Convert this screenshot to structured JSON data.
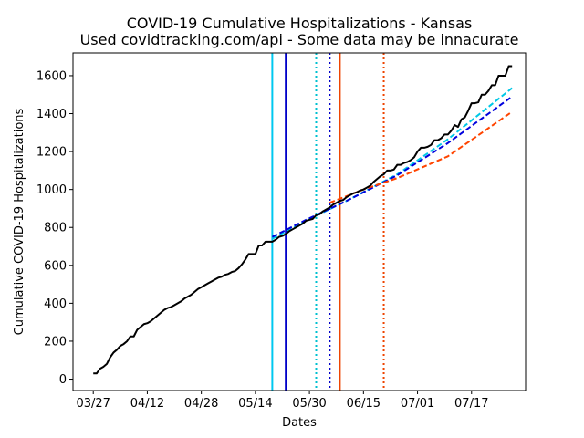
{
  "chart_data": {
    "type": "line",
    "title": "COVID-19 Cumulative Hospitalizations - Kansas",
    "subtitle": "Used covidtracking.com/api - Some data may be innacurate",
    "xlabel": "Dates",
    "ylabel": "Cumulative COVID-19 Hospitalizations",
    "x_ticks": [
      "03/27",
      "04/12",
      "04/28",
      "05/14",
      "05/30",
      "06/15",
      "07/01",
      "07/17"
    ],
    "y_ticks": [
      0,
      200,
      400,
      600,
      800,
      1000,
      1200,
      1400,
      1600
    ],
    "xlim_days_from_0327": [
      -6,
      128
    ],
    "ylim": [
      -60,
      1720
    ],
    "grid": false,
    "legend": "none",
    "series": [
      {
        "style": "solid",
        "color": "#000000",
        "x": [
          "03/27",
          "03/28",
          "03/29",
          "03/30",
          "03/31",
          "04/01",
          "04/02",
          "04/03",
          "04/04",
          "04/05",
          "04/06",
          "04/07",
          "04/08",
          "04/09",
          "04/10",
          "04/11",
          "04/12",
          "04/13",
          "04/14",
          "04/15",
          "04/16",
          "04/17",
          "04/18",
          "04/19",
          "04/20",
          "04/21",
          "04/22",
          "04/23",
          "04/24",
          "04/25",
          "04/26",
          "04/27",
          "04/28",
          "04/29",
          "04/30",
          "05/01",
          "05/02",
          "05/03",
          "05/04",
          "05/05",
          "05/06",
          "05/07",
          "05/08",
          "05/09",
          "05/10",
          "05/11",
          "05/12",
          "05/13",
          "05/14",
          "05/15",
          "05/16",
          "05/17",
          "05/18",
          "05/19",
          "05/20",
          "05/21",
          "05/22",
          "05/23",
          "05/24",
          "05/25",
          "05/26",
          "05/27",
          "05/28",
          "05/29",
          "05/30",
          "05/31",
          "06/01",
          "06/02",
          "06/03",
          "06/04",
          "06/05",
          "06/06",
          "06/07",
          "06/08",
          "06/09",
          "06/10",
          "06/11",
          "06/12",
          "06/13",
          "06/14",
          "06/15",
          "06/16",
          "06/17",
          "06/18",
          "06/19",
          "06/20",
          "06/21",
          "06/22",
          "06/23",
          "06/24",
          "06/25",
          "06/26",
          "06/27",
          "06/28",
          "06/29",
          "06/30",
          "07/01",
          "07/02",
          "07/03",
          "07/04",
          "07/05",
          "07/06",
          "07/07",
          "07/08",
          "07/09",
          "07/10",
          "07/11",
          "07/12",
          "07/13",
          "07/14",
          "07/15",
          "07/16",
          "07/17",
          "07/18",
          "07/19",
          "07/20",
          "07/21",
          "07/22",
          "07/23",
          "07/24",
          "07/25",
          "07/26",
          "07/27",
          "07/28",
          "07/29"
        ],
        "y": [
          30,
          30,
          55,
          65,
          80,
          115,
          140,
          155,
          175,
          185,
          200,
          225,
          225,
          260,
          275,
          290,
          295,
          305,
          320,
          335,
          350,
          365,
          375,
          380,
          390,
          400,
          410,
          425,
          435,
          445,
          460,
          475,
          485,
          495,
          505,
          515,
          525,
          535,
          540,
          550,
          555,
          565,
          570,
          585,
          605,
          630,
          660,
          660,
          660,
          705,
          705,
          725,
          725,
          725,
          735,
          750,
          755,
          765,
          780,
          790,
          800,
          810,
          820,
          835,
          840,
          845,
          865,
          870,
          885,
          895,
          905,
          920,
          930,
          940,
          945,
          960,
          970,
          980,
          985,
          995,
          1000,
          1010,
          1020,
          1040,
          1055,
          1070,
          1080,
          1100,
          1100,
          1105,
          1130,
          1130,
          1140,
          1145,
          1155,
          1170,
          1200,
          1220,
          1220,
          1225,
          1235,
          1260,
          1260,
          1270,
          1290,
          1290,
          1310,
          1340,
          1330,
          1370,
          1380,
          1415,
          1455,
          1455,
          1460,
          1500,
          1500,
          1520,
          1550,
          1550,
          1600,
          1600,
          1600,
          1650,
          1650
        ]
      },
      {
        "style": "dashed",
        "color": "#00c8e6",
        "x": [
          "05/19",
          "05/29",
          "06/10",
          "06/25",
          "07/10",
          "07/29"
        ],
        "y": [
          740,
          835,
          940,
          1080,
          1265,
          1535
        ]
      },
      {
        "style": "dashed",
        "color": "#0000dd",
        "x": [
          "05/19",
          "05/29",
          "06/10",
          "06/25",
          "07/10",
          "07/29"
        ],
        "y": [
          750,
          840,
          940,
          1075,
          1245,
          1490
        ]
      },
      {
        "style": "dashed",
        "color": "#ff4400",
        "x": [
          "06/05",
          "06/15",
          "06/25",
          "07/10",
          "07/29"
        ],
        "y": [
          930,
          1000,
          1060,
          1175,
          1410
        ]
      }
    ],
    "vlines": [
      {
        "x": "05/19",
        "style": "solid",
        "color": "#00c8f0"
      },
      {
        "x": "05/23",
        "style": "solid",
        "color": "#0000c8"
      },
      {
        "x": "06/01",
        "style": "dotted",
        "color": "#00c0d0"
      },
      {
        "x": "06/05",
        "style": "dotted",
        "color": "#0000c8"
      },
      {
        "x": "06/08",
        "style": "solid",
        "color": "#ee4400"
      },
      {
        "x": "06/21",
        "style": "dotted",
        "color": "#ee4400"
      }
    ]
  }
}
